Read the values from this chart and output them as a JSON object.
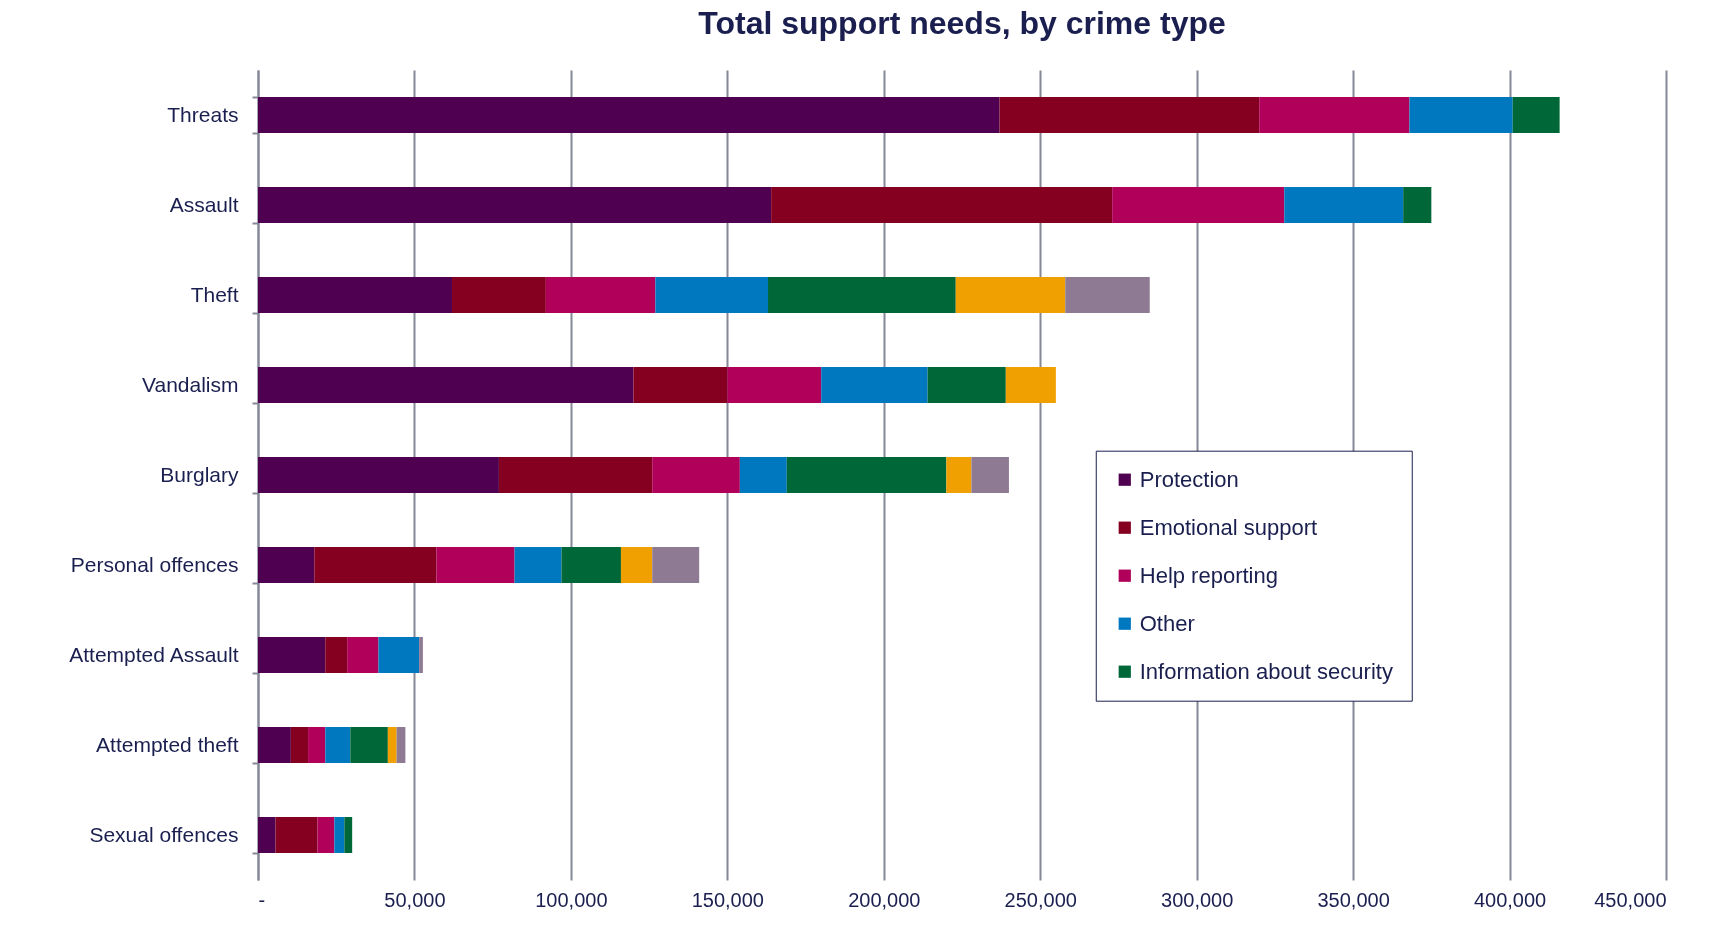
{
  "chart_data": {
    "type": "bar",
    "orientation": "horizontal",
    "stacked": true,
    "title": "Total support needs, by crime type",
    "categories": [
      "Threats",
      "Assault",
      "Theft",
      "Vandalism",
      "Burglary",
      "Personal offences",
      "Attempted Assault",
      "Attempted theft",
      "Sexual offences"
    ],
    "series": [
      {
        "name": "Protection",
        "color": "#4f0050",
        "values": [
          237000,
          164000,
          62000,
          120000,
          77000,
          18000,
          21500,
          10500,
          5600
        ]
      },
      {
        "name": "Emotional support",
        "color": "#850020",
        "values": [
          83000,
          109000,
          30000,
          30000,
          49000,
          39000,
          7000,
          5500,
          13400
        ]
      },
      {
        "name": "Help reporting",
        "color": "#b0005a",
        "values": [
          48000,
          55000,
          35000,
          30000,
          28000,
          25000,
          10000,
          5500,
          5400
        ]
      },
      {
        "name": "Other",
        "color": "#0078c0",
        "values": [
          33000,
          38000,
          36000,
          34000,
          15000,
          15000,
          13000,
          8000,
          3200
        ]
      },
      {
        "name": "Information about security",
        "color": "#006838",
        "values": [
          15000,
          9000,
          60000,
          25000,
          51000,
          19000,
          null,
          12000,
          2500
        ]
      },
      {
        "color": "#f0a000",
        "values": [
          null,
          null,
          35000,
          16000,
          8000,
          10000,
          null,
          2800,
          null
        ]
      },
      {
        "color": "#8f7a94",
        "values": [
          null,
          null,
          27000,
          null,
          12000,
          15000,
          1200,
          2800,
          null
        ]
      }
    ],
    "xlim": [
      0,
      450000
    ],
    "xticks": [
      {
        "value": 0,
        "label": "-"
      },
      {
        "value": 50000,
        "label": "50,000"
      },
      {
        "value": 100000,
        "label": "100,000"
      },
      {
        "value": 150000,
        "label": "150,000"
      },
      {
        "value": 200000,
        "label": "200,000"
      },
      {
        "value": 250000,
        "label": "250,000"
      },
      {
        "value": 300000,
        "label": "300,000"
      },
      {
        "value": 350000,
        "label": "350,000"
      },
      {
        "value": 400000,
        "label": "400,000"
      },
      {
        "value": 450000,
        "label": "450,000"
      }
    ],
    "grid": "x",
    "legend": "bottom right"
  }
}
